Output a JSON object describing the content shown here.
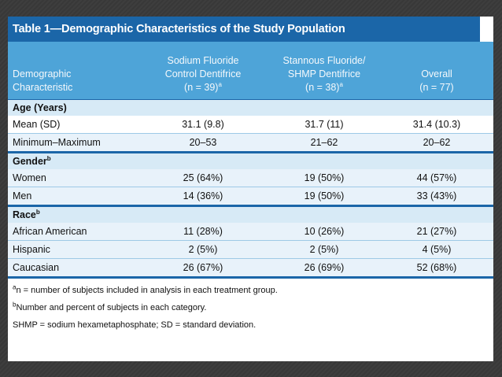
{
  "title": "Table 1—Demographic Characteristics of the Study Population",
  "header": {
    "col0_line1": "Demographic",
    "col0_line2": "Characteristic",
    "col1_line1": "Sodium Fluoride",
    "col1_line2": "Control Dentifrice",
    "col1_line3": "(n = 39)",
    "col1_sup": "a",
    "col2_line1": "Stannous Fluoride/",
    "col2_line2": "SHMP Dentifrice",
    "col2_line3": "(n = 38)",
    "col2_sup": "a",
    "col3_line1": "Overall",
    "col3_line2": "(n = 77)"
  },
  "sections": {
    "age": {
      "title": "Age (Years)",
      "rows": [
        {
          "label": "Mean (SD)",
          "v1": "31.1 (9.8)",
          "v2": "31.7 (11)",
          "v3": "31.4 (10.3)"
        },
        {
          "label": "Minimum–Maximum",
          "v1": "20–53",
          "v2": "21–62",
          "v3": "20–62"
        }
      ]
    },
    "gender": {
      "title": "Gender",
      "sup": "b",
      "rows": [
        {
          "label": "Women",
          "v1": "25 (64%)",
          "v2": "19 (50%)",
          "v3": "44 (57%)"
        },
        {
          "label": "Men",
          "v1": "14 (36%)",
          "v2": "19 (50%)",
          "v3": "33 (43%)"
        }
      ]
    },
    "race": {
      "title": "Race",
      "sup": "b",
      "rows": [
        {
          "label": "African American",
          "v1": "11 (28%)",
          "v2": "10 (26%)",
          "v3": "21 (27%)"
        },
        {
          "label": "Hispanic",
          "v1": "2 (5%)",
          "v2": "2 (5%)",
          "v3": "4 (5%)"
        },
        {
          "label": "Caucasian",
          "v1": "26 (67%)",
          "v2": "26 (69%)",
          "v3": "52 (68%)"
        }
      ]
    }
  },
  "footnotes": {
    "a_sup": "a",
    "a_text": "n = number of subjects included in analysis in each treatment group.",
    "b_sup": "b",
    "b_text": "Number and percent of subjects in each category.",
    "c_text": "SHMP = sodium hexametaphosphate; SD = standard deviation."
  }
}
